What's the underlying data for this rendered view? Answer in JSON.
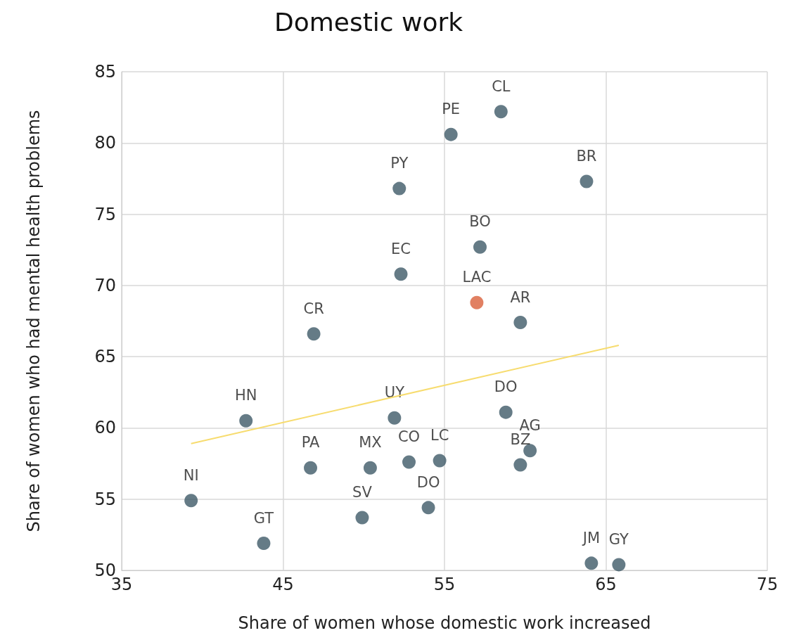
{
  "chart_data": {
    "type": "scatter",
    "title": "Domestic work",
    "xlabel": "Share of women whose domestic work increased",
    "ylabel": "Share of women who had mental health problems",
    "xlim": [
      35,
      75
    ],
    "xticks": [
      35,
      45,
      55,
      65,
      75
    ],
    "ylim": [
      50,
      85
    ],
    "yticks": [
      50,
      55,
      60,
      65,
      70,
      75,
      80,
      85
    ],
    "grid": true,
    "marker": "circle",
    "series": [
      {
        "x": [
          58.5,
          55.4,
          63.8,
          52.2,
          57.2,
          52.3,
          57.0,
          59.7,
          46.9,
          42.7,
          51.9,
          58.8,
          60.3,
          59.7,
          46.7,
          50.4,
          52.8,
          54.7,
          54.0,
          49.9,
          39.3,
          43.8,
          64.1,
          65.8
        ],
        "values": [
          82.2,
          80.6,
          77.3,
          76.8,
          72.7,
          70.8,
          68.8,
          67.4,
          66.6,
          60.5,
          60.7,
          61.1,
          58.4,
          57.4,
          57.2,
          57.2,
          57.6,
          57.7,
          54.4,
          53.7,
          54.9,
          51.9,
          50.5,
          50.4
        ],
        "value_labels": [
          "CL",
          "PE",
          "BR",
          "PY",
          "BO",
          "EC",
          "LAC",
          "AR",
          "CR",
          "HN",
          "UY",
          "DO",
          "AG",
          "BZ",
          "PA",
          "MX",
          "CO",
          "LC",
          "DO",
          "SV",
          "NI",
          "GT",
          "JM",
          "GY"
        ],
        "colors": [
          "#3f5a68",
          "#3f5a68",
          "#3f5a68",
          "#3f5a68",
          "#3f5a68",
          "#3f5a68",
          "#d9603b",
          "#3f5a68",
          "#3f5a68",
          "#3f5a68",
          "#3f5a68",
          "#3f5a68",
          "#3f5a68",
          "#3f5a68",
          "#3f5a68",
          "#3f5a68",
          "#3f5a68",
          "#3f5a68",
          "#3f5a68",
          "#3f5a68",
          "#3f5a68",
          "#3f5a68",
          "#3f5a68",
          "#3f5a68"
        ]
      },
      {
        "type": "line",
        "x": [
          39.3,
          65.8
        ],
        "values": [
          58.9,
          65.8
        ],
        "color": "#f7dc6f",
        "marker": "none"
      }
    ]
  }
}
